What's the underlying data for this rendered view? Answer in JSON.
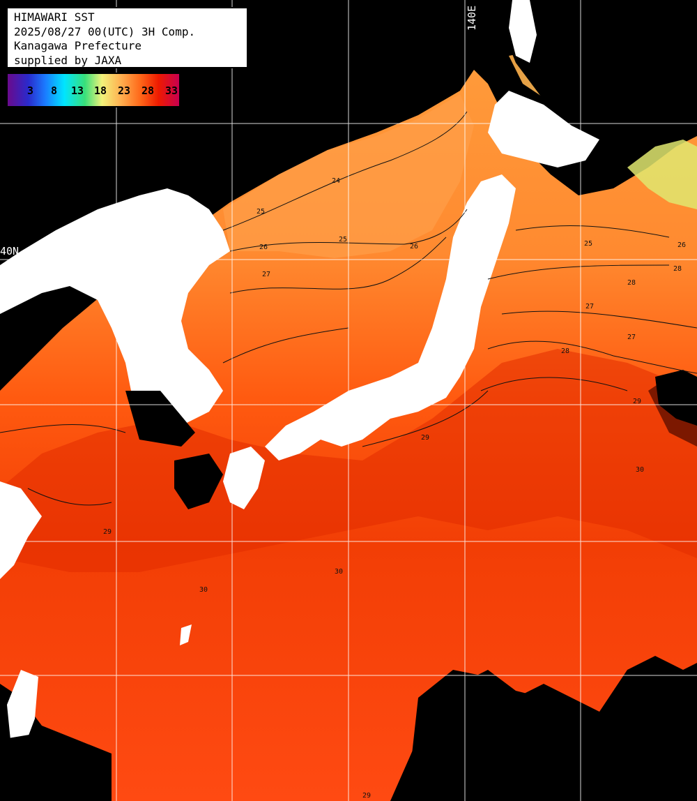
{
  "title_lines": {
    "line1": "HIMAWARI SST",
    "line2": "2025/08/27 00(UTC) 3H Comp.",
    "line3": "Kanagawa Prefecture",
    "line4": "supplied by JAXA"
  },
  "colorbar": {
    "ticks": [
      "3",
      "8",
      "13",
      "18",
      "23",
      "28",
      "33"
    ]
  },
  "axes": {
    "lon_label": "140E",
    "lat_label": "40N"
  },
  "contour_labels": [
    "24",
    "25",
    "26",
    "27",
    "28",
    "29",
    "30",
    "25",
    "26",
    "27",
    "28",
    "29",
    "30",
    "29",
    "28",
    "27",
    "26",
    "25",
    "30",
    "29"
  ],
  "colors": {
    "land": "#000000",
    "cloud_mask": "#ffffff",
    "grid": "#ffffff",
    "sst_warm": "#ff3a00",
    "sst_mid": "#ff7a20",
    "sst_cool": "#ffc060"
  }
}
